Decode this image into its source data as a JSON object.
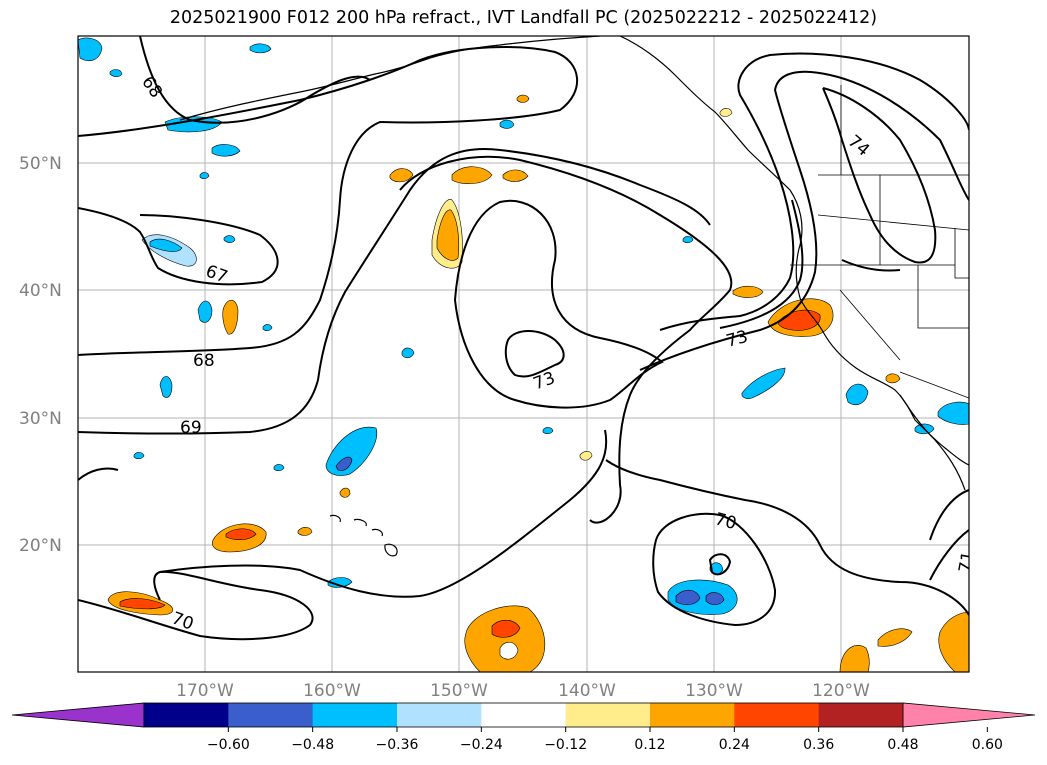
{
  "title": "2025021900 F012 200 hPa refract., IVT Landfall PC (2025022212 - 2025022412)",
  "lat_labels": [
    "50°N",
    "40°N",
    "30°N",
    "20°N"
  ],
  "lon_labels": [
    "170°W",
    "160°W",
    "150°W",
    "140°W",
    "130°W",
    "120°W"
  ],
  "contour_labels": [
    "68",
    "67",
    "68",
    "69",
    "70",
    "73",
    "73",
    "74",
    "70",
    "71"
  ],
  "colorbar": {
    "colors": [
      "#9933cc",
      "#00008b",
      "#3a5fcd",
      "#00bfff",
      "#b0e2ff",
      "#ffffff",
      "#ffec8b",
      "#ffa500",
      "#ff4500",
      "#b22222",
      "#ff82ab"
    ],
    "tick_labels": [
      "−0.60",
      "−0.48",
      "−0.36",
      "−0.24",
      "−0.12",
      "0.12",
      "0.24",
      "0.36",
      "0.48",
      "0.60"
    ]
  }
}
